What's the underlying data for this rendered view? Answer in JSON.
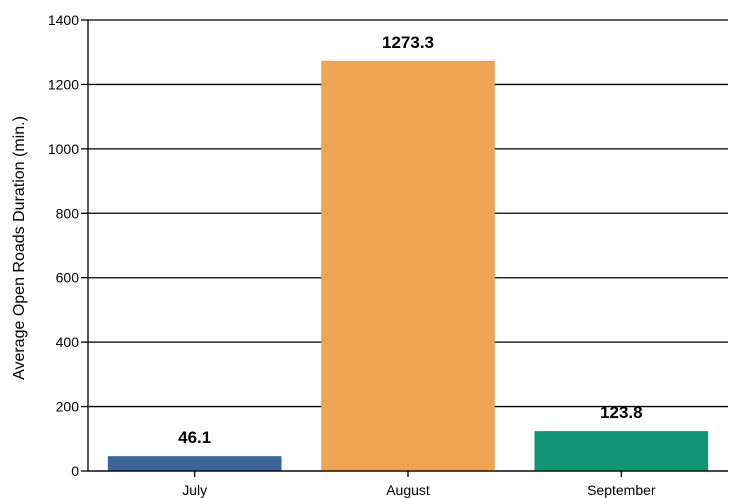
{
  "chart_data": {
    "type": "bar",
    "title": "",
    "xlabel": "",
    "ylabel": "Average Open Roads Duration (min.)",
    "categories": [
      "July",
      "August",
      "September"
    ],
    "values": [
      46.1,
      1273.3,
      123.8
    ],
    "data_labels": [
      "46.1",
      "1273.3",
      "123.8"
    ],
    "colors": [
      "#3e6498",
      "#eea452",
      "#0f9573"
    ],
    "ylim": [
      0,
      1400
    ],
    "yticks": [
      0,
      200,
      400,
      600,
      800,
      1000,
      1200,
      1400
    ],
    "grid": true,
    "legend": "none"
  }
}
